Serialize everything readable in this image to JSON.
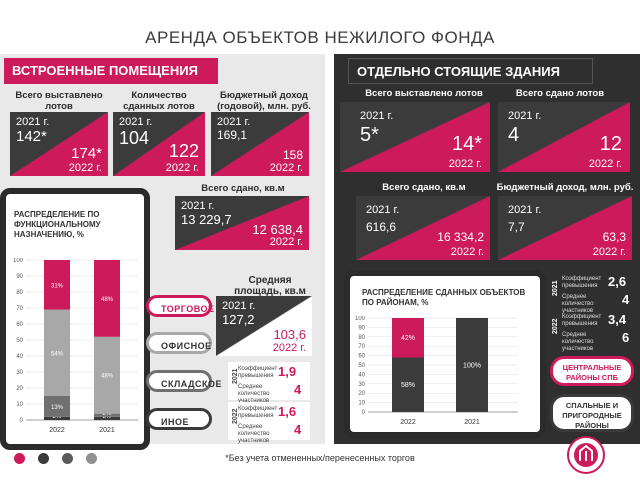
{
  "title": "АРЕНДА ОБЪЕКТОВ НЕЖИЛОГО ФОНДА",
  "footnote": "*Без учета отмененных/перенесенных торгов",
  "colors": {
    "accent": "#cc1a5a",
    "dark": "#2f2f2f",
    "light": "#e9e9e9"
  },
  "left": {
    "header": "ВСТРОЕННЫЕ ПОМЕЩЕНИЯ",
    "stats": [
      {
        "label": "Всего выставлено лотов",
        "y1": "2021 г.",
        "v1": "142*",
        "v2": "174*",
        "y2": "2022 г."
      },
      {
        "label": "Количество сданных лотов",
        "y1": "2021 г.",
        "v1": "104",
        "v2": "122",
        "y2": "2022 г."
      },
      {
        "label": "Бюджетный доход (годовой), млн. руб.",
        "y1": "2021 г.",
        "v1": "169,1",
        "v2": "158",
        "y2": "2022 г."
      }
    ],
    "area": {
      "label": "Всего сдано, кв.м",
      "y1": "2021 г.",
      "v1": "13 229,7",
      "v2": "12 638,4",
      "y2": "2022 г."
    },
    "avg": {
      "label": "Средняя площадь, кв.м",
      "y1": "2021 г.",
      "v1": "127,2",
      "v2": "103,6",
      "y2": "2022 г."
    },
    "ratio_2021": {
      "year": "2021",
      "k_label": "Коэффициент превышения",
      "k": "1,9",
      "p_label": "Среднее количество участников",
      "p": "4"
    },
    "ratio_2022": {
      "year": "2022",
      "k_label": "Коэффициент превышения",
      "k": "1,6",
      "p_label": "Среднее количество участников",
      "p": "4"
    },
    "categories": [
      "ТОРГОВОЕ",
      "ОФИСНОЕ",
      "СКЛАДСКОЕ",
      "ИНОЕ"
    ]
  },
  "right": {
    "header": "ОТДЕЛЬНО СТОЯЩИЕ ЗДАНИЯ",
    "stats": [
      {
        "label": "Всего выставлено лотов",
        "y1": "2021 г.",
        "v1": "5*",
        "v2": "14*",
        "y2": "2022 г."
      },
      {
        "label": "Всего сдано лотов",
        "y1": "2021 г.",
        "v1": "4",
        "v2": "12",
        "y2": "2022 г."
      },
      {
        "label": "Всего сдано, кв.м",
        "y1": "2021 г.",
        "v1": "616,6",
        "v2": "16 334,2",
        "y2": "2022 г."
      },
      {
        "label": "Бюджетный доход, млн. руб.",
        "y1": "2021 г.",
        "v1": "7,7",
        "v2": "63,3",
        "y2": "2022 г."
      }
    ],
    "ratio_2021": {
      "year": "2021",
      "k_label": "Коэффициент превышения",
      "k": "2,6",
      "p_label": "Среднее количество участников",
      "p": "4"
    },
    "ratio_2022": {
      "year": "2022",
      "k_label": "Коэффициент превышения",
      "k": "3,4",
      "p_label": "Среднее количество участников",
      "p": "6"
    },
    "legend": [
      "ЦЕНТРАЛЬНЫЕ РАЙОНЫ СПБ",
      "СПАЛЬНЫЕ И ПРИГОРОДНЫЕ РАЙОНЫ"
    ]
  },
  "chart_data": [
    {
      "type": "bar",
      "title": "РАСПРЕДЕЛЕНИЕ ПО ФУНКЦИОНАЛЬНОМУ НАЗНАЧЕНИЮ, %",
      "stacked": true,
      "categories": [
        "2022",
        "2021"
      ],
      "series": [
        {
          "name": "ИНОЕ",
          "color": "#3b3b3b",
          "values": [
            2,
            2
          ]
        },
        {
          "name": "СКЛАДСКОЕ",
          "color": "#707070",
          "values": [
            13,
            2
          ]
        },
        {
          "name": "ОФИСНОЕ",
          "color": "#a8a8a8",
          "values": [
            54,
            48
          ]
        },
        {
          "name": "ТОРГОВОЕ",
          "color": "#cc1a5a",
          "values": [
            31,
            48
          ]
        }
      ],
      "labels": [
        [
          "2%",
          "13%",
          "54%",
          "31%"
        ],
        [
          "2%",
          "2%",
          "48%",
          "48%"
        ]
      ],
      "yticks": [
        0,
        10,
        20,
        30,
        40,
        50,
        60,
        70,
        80,
        90,
        100
      ],
      "ylim": [
        0,
        100
      ]
    },
    {
      "type": "bar",
      "title": "РАСПРЕДЕЛЕНИЕ СДАННЫХ ОБЪЕКТОВ ПО РАЙОНАМ, %",
      "stacked": true,
      "categories": [
        "2022",
        "2021"
      ],
      "series": [
        {
          "name": "СПАЛЬНЫЕ И ПРИГОРОДНЫЕ РАЙОНЫ",
          "color": "#3b3b3b",
          "values": [
            58,
            100
          ]
        },
        {
          "name": "ЦЕНТРАЛЬНЫЕ РАЙОНЫ СПБ",
          "color": "#cc1a5a",
          "values": [
            42,
            0
          ]
        }
      ],
      "labels": [
        [
          "58%",
          "42%"
        ],
        [
          "100%",
          ""
        ]
      ],
      "yticks": [
        0,
        10,
        20,
        30,
        40,
        50,
        60,
        70,
        80,
        90,
        100
      ],
      "ylim": [
        0,
        100
      ]
    }
  ]
}
